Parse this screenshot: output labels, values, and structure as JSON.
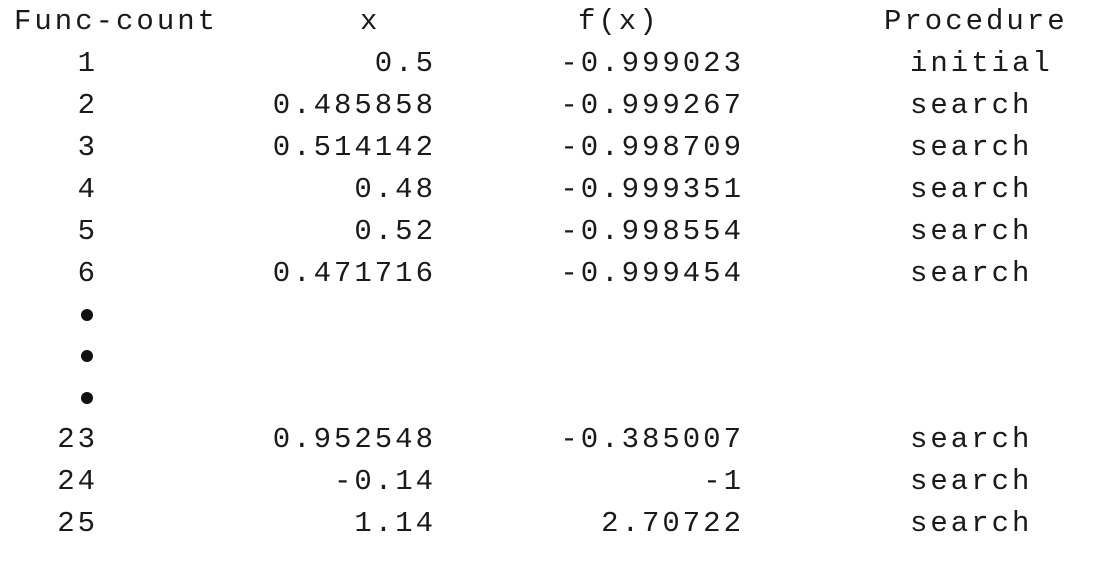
{
  "headers": {
    "func_count": "Func-count",
    "x": "x",
    "fx": "f(x)",
    "procedure": "Procedure"
  },
  "rows_top": [
    {
      "count": "1",
      "x": "0.5",
      "fx": "-0.999023",
      "procedure": "initial"
    },
    {
      "count": "2",
      "x": "0.485858",
      "fx": "-0.999267",
      "procedure": "search"
    },
    {
      "count": "3",
      "x": "0.514142",
      "fx": "-0.998709",
      "procedure": "search"
    },
    {
      "count": "4",
      "x": "0.48",
      "fx": "-0.999351",
      "procedure": "search"
    },
    {
      "count": "5",
      "x": "0.52",
      "fx": "-0.998554",
      "procedure": "search"
    },
    {
      "count": "6",
      "x": "0.471716",
      "fx": "-0.999454",
      "procedure": "search"
    }
  ],
  "ellipsis_glyph": "•",
  "rows_bottom": [
    {
      "count": "23",
      "x": "0.952548",
      "fx": "-0.385007",
      "procedure": "search"
    },
    {
      "count": "24",
      "x": "-0.14",
      "fx": "-1",
      "procedure": "search"
    },
    {
      "count": "25",
      "x": "1.14",
      "fx": "2.70722",
      "procedure": "search"
    }
  ]
}
